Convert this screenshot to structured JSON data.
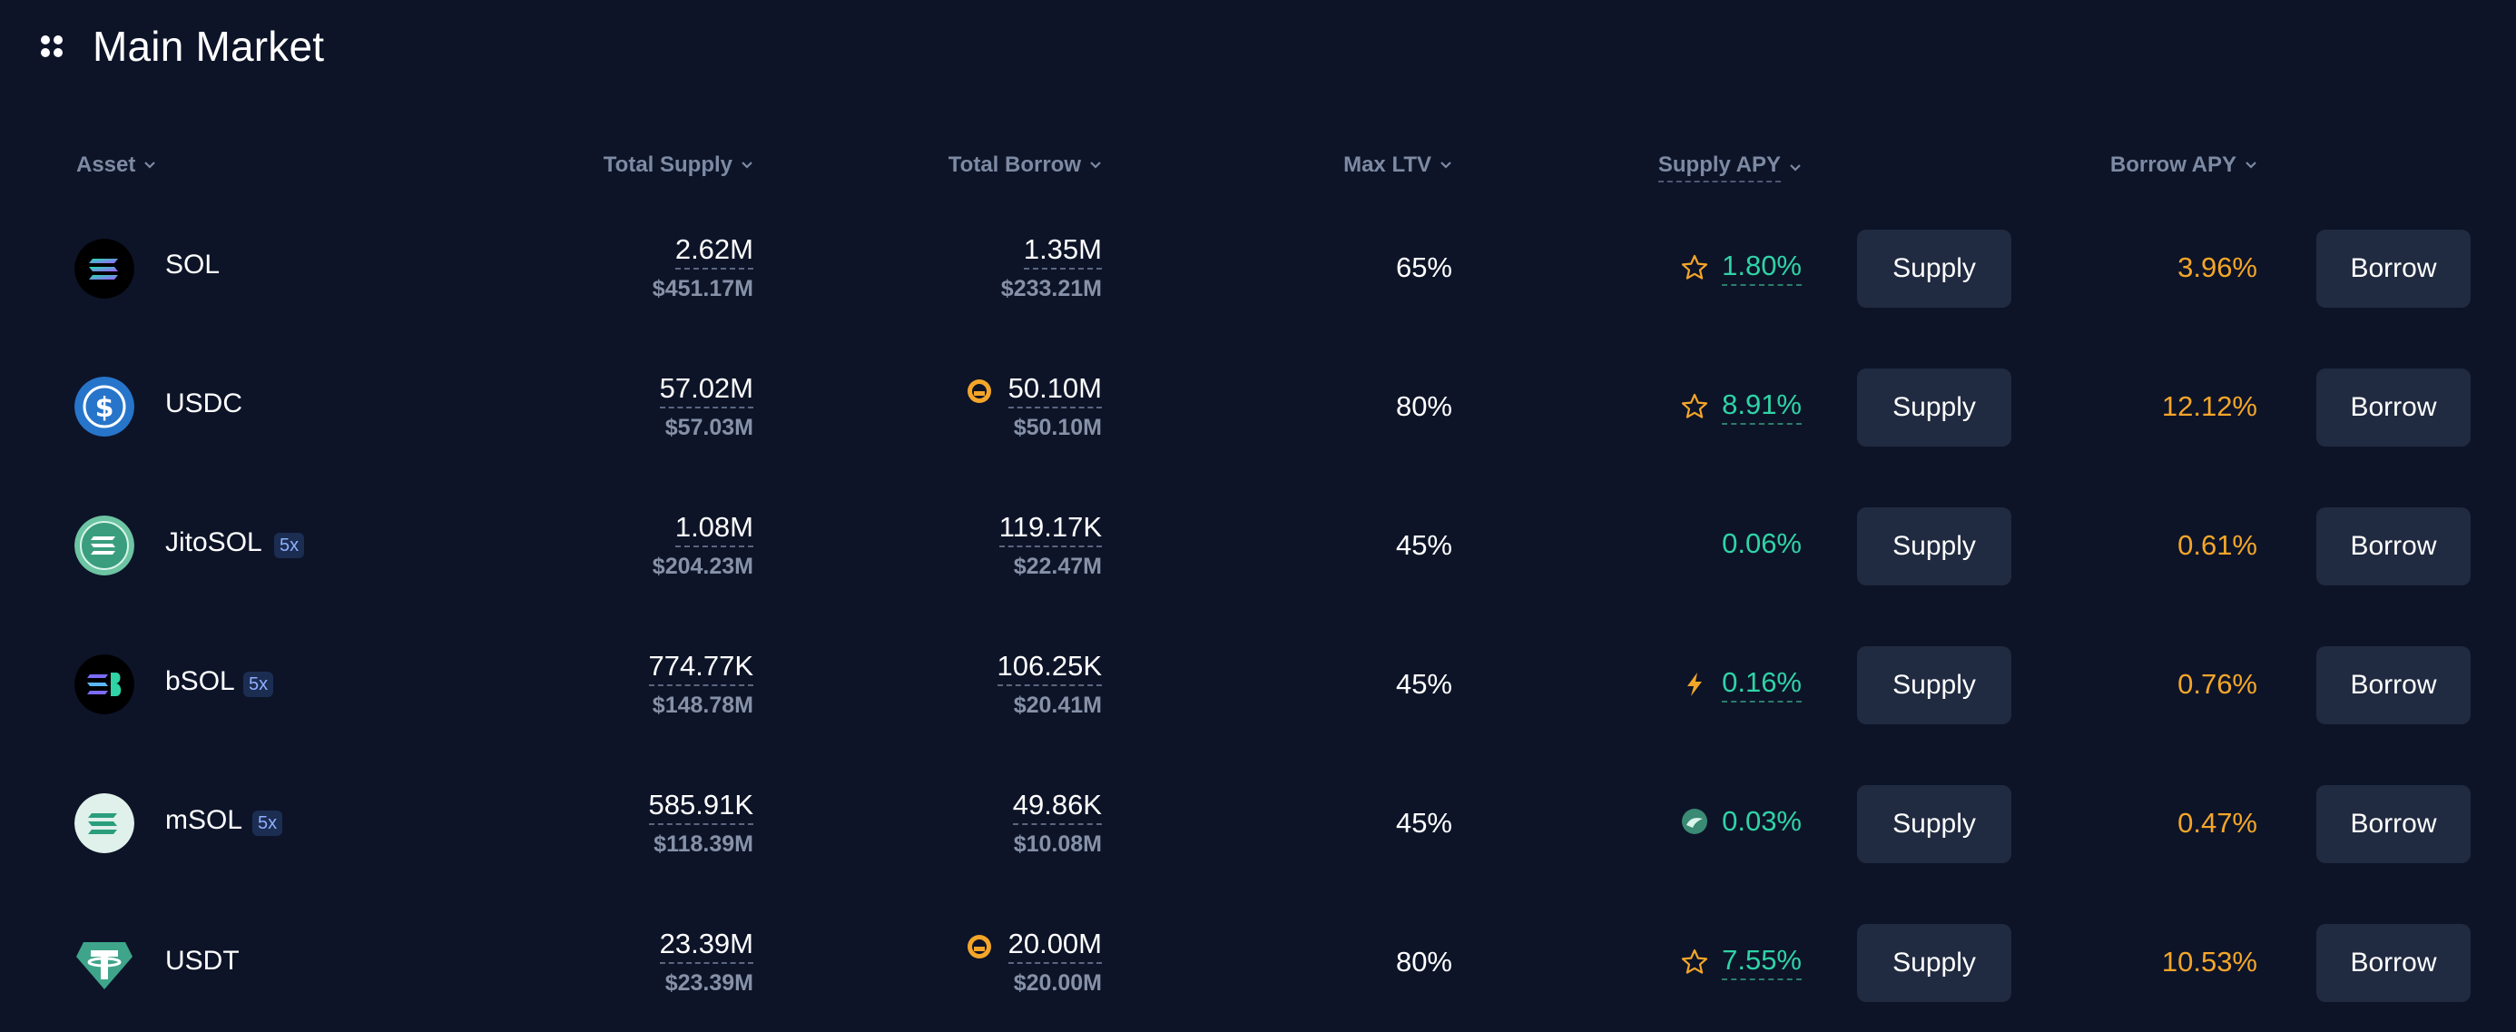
{
  "header": {
    "title": "Main Market",
    "menu_icon": "grid-dots-icon"
  },
  "columns": {
    "asset": "Asset",
    "total_supply": "Total Supply",
    "total_borrow": "Total Borrow",
    "max_ltv": "Max LTV",
    "supply_apy": "Supply APY",
    "borrow_apy": "Borrow APY"
  },
  "colors": {
    "background": "#0d1428",
    "supply_apy": "#2fd3a6",
    "borrow_apy": "#f4a629",
    "button": "#202a40"
  },
  "rows": [
    {
      "asset": "SOL",
      "badge": "",
      "logo_icon": "solana-icon",
      "total_supply": "2.62M",
      "total_supply_usd": "$451.17M",
      "total_borrow": "1.35M",
      "total_borrow_usd": "$233.21M",
      "borrow_icon": "",
      "max_ltv": "65%",
      "supply_icon": "star-icon",
      "supply_apy": "1.80%",
      "borrow_apy": "3.96%",
      "supply_label": "Supply",
      "borrow_label": "Borrow"
    },
    {
      "asset": "USDC",
      "badge": "",
      "logo_icon": "usdc-icon",
      "total_supply": "57.02M",
      "total_supply_usd": "$57.03M",
      "total_borrow": "50.10M",
      "total_borrow_usd": "$50.10M",
      "borrow_icon": "cap-warning-icon",
      "max_ltv": "80%",
      "supply_icon": "star-icon",
      "supply_apy": "8.91%",
      "borrow_apy": "12.12%",
      "supply_label": "Supply",
      "borrow_label": "Borrow"
    },
    {
      "asset": "JitoSOL",
      "badge": "5x",
      "logo_icon": "jitosol-icon",
      "total_supply": "1.08M",
      "total_supply_usd": "$204.23M",
      "total_borrow": "119.17K",
      "total_borrow_usd": "$22.47M",
      "borrow_icon": "",
      "max_ltv": "45%",
      "supply_icon": "",
      "supply_apy": "0.06%",
      "borrow_apy": "0.61%",
      "supply_label": "Supply",
      "borrow_label": "Borrow"
    },
    {
      "asset": "bSOL",
      "badge": "5x",
      "logo_icon": "bsol-icon",
      "total_supply": "774.77K",
      "total_supply_usd": "$148.78M",
      "total_borrow": "106.25K",
      "total_borrow_usd": "$20.41M",
      "borrow_icon": "",
      "max_ltv": "45%",
      "supply_icon": "lightning-icon",
      "supply_apy": "0.16%",
      "borrow_apy": "0.76%",
      "supply_label": "Supply",
      "borrow_label": "Borrow"
    },
    {
      "asset": "mSOL",
      "badge": "5x",
      "logo_icon": "msol-icon",
      "total_supply": "585.91K",
      "total_supply_usd": "$118.39M",
      "total_borrow": "49.86K",
      "total_borrow_usd": "$10.08M",
      "borrow_icon": "",
      "max_ltv": "45%",
      "supply_icon": "marinade-icon",
      "supply_apy": "0.03%",
      "borrow_apy": "0.47%",
      "supply_label": "Supply",
      "borrow_label": "Borrow"
    },
    {
      "asset": "USDT",
      "badge": "",
      "logo_icon": "usdt-icon",
      "total_supply": "23.39M",
      "total_supply_usd": "$23.39M",
      "total_borrow": "20.00M",
      "total_borrow_usd": "$20.00M",
      "borrow_icon": "cap-warning-icon",
      "max_ltv": "80%",
      "supply_icon": "star-icon",
      "supply_apy": "7.55%",
      "borrow_apy": "10.53%",
      "supply_label": "Supply",
      "borrow_label": "Borrow"
    }
  ]
}
